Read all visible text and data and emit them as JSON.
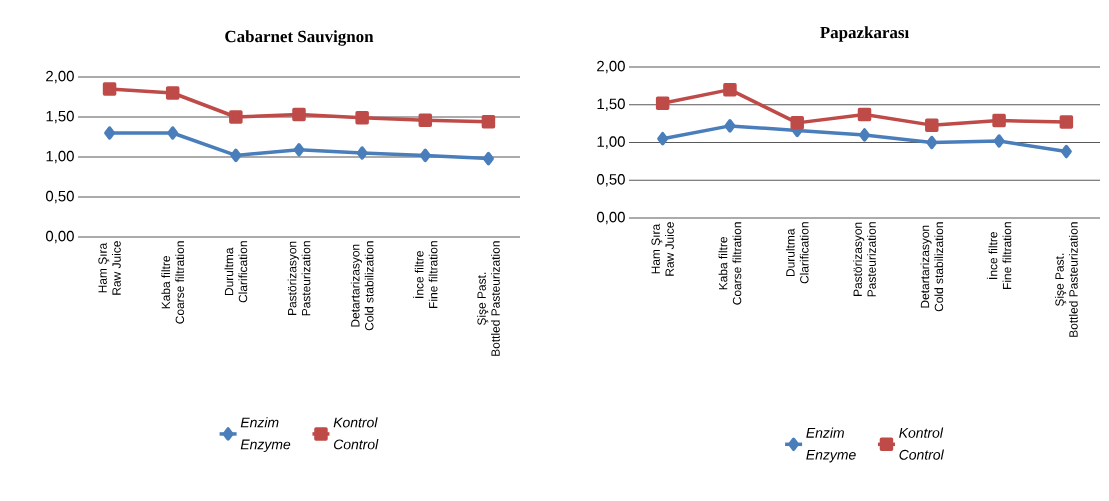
{
  "chart_data": [
    {
      "type": "line",
      "title": "Cabarnet Sauvignon",
      "categories": [
        "Ham Şıra\nRaw Juice",
        "Kaba filtre\nCoarse filtration",
        "Durultma\nClarification",
        "Pastörizasyon\nPasteurization",
        "Detartarizasyon\nCold stabilization",
        "İnce filtre\nFine filtration",
        "Şişe Past.\nBottled Pasteurization"
      ],
      "series": [
        {
          "name": "Enzim\nEnzyme",
          "color": "#4a7ebb",
          "marker": "diamond",
          "values": [
            1.3,
            1.3,
            1.02,
            1.09,
            1.05,
            1.02,
            0.98
          ]
        },
        {
          "name": "Kontrol\nControl",
          "color": "#be4b48",
          "marker": "square",
          "values": [
            1.85,
            1.8,
            1.5,
            1.53,
            1.49,
            1.46,
            1.44
          ]
        }
      ],
      "ylim": [
        0,
        2
      ],
      "yticks": [
        {
          "value": 0,
          "label": "0,00"
        },
        {
          "value": 0.5,
          "label": "0,50"
        },
        {
          "value": 1,
          "label": "1,00"
        },
        {
          "value": 1.5,
          "label": "1,50"
        },
        {
          "value": 2,
          "label": "2,00"
        }
      ],
      "grid": "y",
      "legend": "bottom",
      "line_style": "solid"
    },
    {
      "type": "line",
      "title": "Papazkarası",
      "categories": [
        "Ham Şıra\nRaw Juice",
        "Kaba filtre\nCoarse filtration",
        "Durultma\nClarification",
        "Pastörizasyon\nPasteurization",
        "Detartarizasyon\nCold stabilization",
        "İnce filtre\nFine filtration",
        "Şişe Past.\nBottled Pasteurization"
      ],
      "series": [
        {
          "name": "Enzim\nEnzyme",
          "color": "#4a7ebb",
          "marker": "diamond",
          "values": [
            1.05,
            1.22,
            1.16,
            1.1,
            1.0,
            1.02,
            0.88
          ]
        },
        {
          "name": "Kontrol\nControl",
          "color": "#be4b48",
          "marker": "square",
          "values": [
            1.52,
            1.7,
            1.26,
            1.37,
            1.23,
            1.29,
            1.27
          ]
        }
      ],
      "ylim": [
        0,
        2
      ],
      "yticks": [
        {
          "value": 0,
          "label": "0,00"
        },
        {
          "value": 0.5,
          "label": "0,50"
        },
        {
          "value": 1,
          "label": "1,00"
        },
        {
          "value": 1.5,
          "label": "1,50"
        },
        {
          "value": 2,
          "label": "2,00"
        }
      ],
      "grid": "y",
      "legend": "bottom",
      "line_style": "solid"
    }
  ]
}
